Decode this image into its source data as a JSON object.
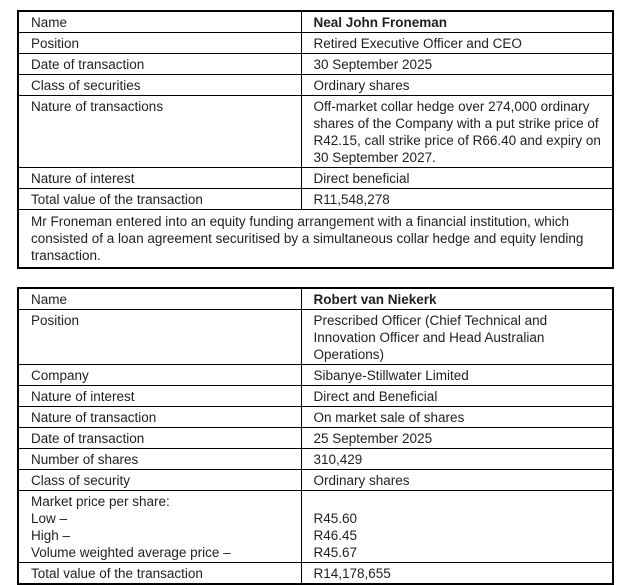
{
  "page": {
    "background": "#ffffff",
    "text_color": "#1f1f1f",
    "border_color": "#000000"
  },
  "froneman_table": {
    "rows": [
      {
        "label": "Name",
        "value": "Neal John Froneman"
      },
      {
        "label": "Position",
        "value": "Retired Executive Officer and CEO"
      },
      {
        "label": "Date of transaction",
        "value": "30 September 2025"
      },
      {
        "label": "Class of securities",
        "value": "Ordinary shares"
      },
      {
        "label": "Nature of transactions",
        "value": "Off-market collar hedge over 274,000 ordinary shares of the Company with a put strike price of R42.15, call strike price of R66.40 and expiry on 30 September 2027."
      },
      {
        "label": "Nature of interest",
        "value": "Direct beneficial"
      },
      {
        "label": "Total value of the transaction",
        "value": "R11,548,278"
      }
    ],
    "footnote": "Mr Froneman entered into an equity funding arrangement with a financial institution, which consisted of a loan agreement securitised by a simultaneous collar hedge and equity lending transaction."
  },
  "van_niekerk_table": {
    "rows": [
      {
        "label": "Name",
        "value": "Robert van Niekerk"
      },
      {
        "label": "Position",
        "value": "Prescribed Officer (Chief Technical and Innovation Officer and Head Australian Operations)"
      },
      {
        "label": "Company",
        "value": "Sibanye-Stillwater Limited"
      },
      {
        "label": "Nature of interest",
        "value": "Direct and Beneficial"
      },
      {
        "label": "Nature of transaction",
        "value": "On market sale of shares"
      },
      {
        "label": "Date of transaction",
        "value": "25 September 2025"
      },
      {
        "label": "Number of shares",
        "value": "310,429"
      },
      {
        "label": "Class of security",
        "value": "Ordinary shares"
      }
    ],
    "market_price": {
      "label_lines": [
        "Market price per share:",
        "Low –",
        "High –",
        "Volume weighted average price –"
      ],
      "value_lines": [
        "",
        "R45.60",
        "R46.45",
        "R45.67"
      ]
    },
    "total_row": {
      "label": "Total value of the transaction",
      "value": "R14,178,655"
    }
  }
}
